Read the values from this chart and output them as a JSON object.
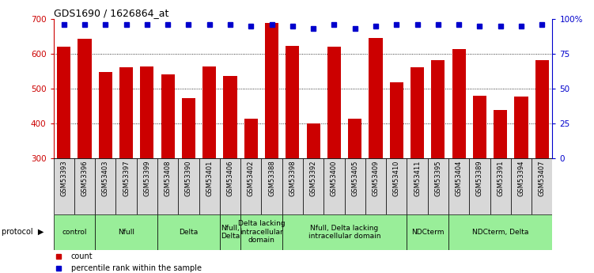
{
  "title": "GDS1690 / 1626864_at",
  "samples": [
    "GSM53393",
    "GSM53396",
    "GSM53403",
    "GSM53397",
    "GSM53399",
    "GSM53408",
    "GSM53390",
    "GSM53401",
    "GSM53406",
    "GSM53402",
    "GSM53388",
    "GSM53398",
    "GSM53392",
    "GSM53400",
    "GSM53405",
    "GSM53409",
    "GSM53410",
    "GSM53411",
    "GSM53395",
    "GSM53404",
    "GSM53389",
    "GSM53391",
    "GSM53394",
    "GSM53407"
  ],
  "counts": [
    620,
    643,
    548,
    562,
    564,
    541,
    472,
    563,
    537,
    413,
    688,
    622,
    400,
    620,
    415,
    645,
    519,
    561,
    582,
    615,
    480,
    438,
    477,
    581
  ],
  "percentiles": [
    96,
    96,
    96,
    96,
    96,
    96,
    96,
    96,
    96,
    95,
    96,
    95,
    93,
    96,
    93,
    95,
    96,
    96,
    96,
    96,
    95,
    95,
    95,
    96
  ],
  "ylim_left": [
    300,
    700
  ],
  "ylim_right": [
    0,
    100
  ],
  "yticks_left": [
    300,
    400,
    500,
    600,
    700
  ],
  "yticks_right": [
    0,
    25,
    50,
    75,
    100
  ],
  "bar_color": "#cc0000",
  "dot_color": "#0000cc",
  "bg_color": "#ffffff",
  "protocol_groups": [
    {
      "label": "control",
      "start": 0,
      "end": 2,
      "color": "#99ee99"
    },
    {
      "label": "Nfull",
      "start": 2,
      "end": 5,
      "color": "#99ee99"
    },
    {
      "label": "Delta",
      "start": 5,
      "end": 8,
      "color": "#99ee99"
    },
    {
      "label": "Nfull,\nDelta",
      "start": 8,
      "end": 9,
      "color": "#99ee99"
    },
    {
      "label": "Delta lacking\nintracellular\ndomain",
      "start": 9,
      "end": 11,
      "color": "#99ee99"
    },
    {
      "label": "Nfull, Delta lacking\nintracellular domain",
      "start": 11,
      "end": 17,
      "color": "#99ee99"
    },
    {
      "label": "NDCterm",
      "start": 17,
      "end": 19,
      "color": "#99ee99"
    },
    {
      "label": "NDCterm, Delta",
      "start": 19,
      "end": 24,
      "color": "#99ee99"
    }
  ]
}
